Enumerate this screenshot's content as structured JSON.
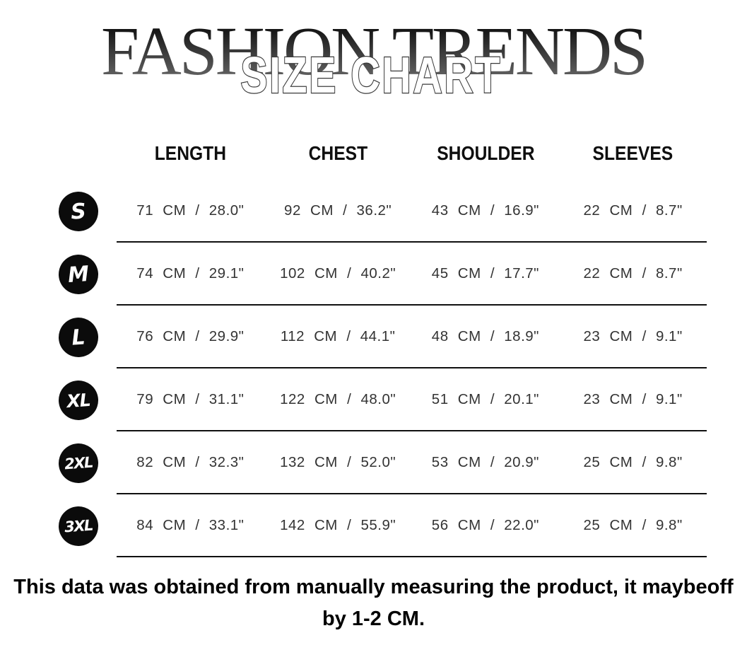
{
  "header": {
    "brand_title": "FASHION TRENDS",
    "subtitle": "SIZE CHART"
  },
  "table": {
    "columns": [
      "LENGTH",
      "CHEST",
      "SHOULDER",
      "SLEEVES"
    ],
    "rows": [
      {
        "size": "S",
        "values": [
          "71 CM / 28.0\"",
          "92 CM / 36.2\"",
          "43 CM / 16.9\"",
          "22 CM / 8.7\""
        ]
      },
      {
        "size": "M",
        "values": [
          "74 CM / 29.1\"",
          "102 CM / 40.2\"",
          "45 CM / 17.7\"",
          "22 CM / 8.7\""
        ]
      },
      {
        "size": "L",
        "values": [
          "76 CM / 29.9\"",
          "112 CM / 44.1\"",
          "48 CM / 18.9\"",
          "23 CM / 9.1\""
        ]
      },
      {
        "size": "XL",
        "values": [
          "79 CM / 31.1\"",
          "122 CM / 48.0\"",
          "51 CM / 20.1\"",
          "23 CM / 9.1\""
        ]
      },
      {
        "size": "2XL",
        "values": [
          "82 CM / 32.3\"",
          "132 CM / 52.0\"",
          "53 CM / 20.9\"",
          "25 CM / 9.8\""
        ]
      },
      {
        "size": "3XL",
        "values": [
          "84 CM / 33.1\"",
          "142 CM / 55.9\"",
          "56 CM / 22.0\"",
          "25 CM / 9.8\""
        ]
      }
    ]
  },
  "footer": {
    "note_line1": "This data was obtained from manually measuring the product, it maybeoff",
    "note_line2": "by 1-2 CM."
  },
  "colors": {
    "badge_background": "#0b0b0b",
    "badge_text": "#ffffff",
    "row_divider": "#101010",
    "title_gradient_top": "#000000",
    "title_gradient_bottom": "#6e6e6e",
    "subtitle_fill": "#ffffff",
    "subtitle_outline": "#3a3a3a",
    "data_text": "#333333"
  }
}
